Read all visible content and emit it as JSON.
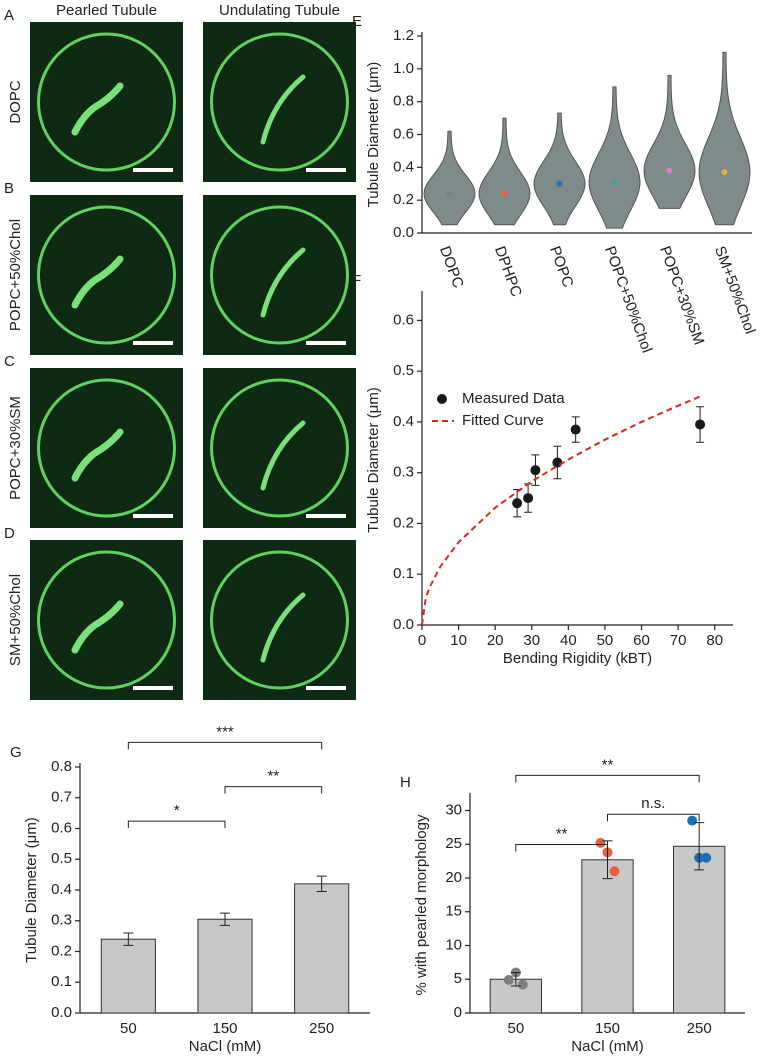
{
  "images": {
    "columns": [
      "Pearled Tubule",
      "Undulating Tubule"
    ],
    "rows": [
      {
        "panel": "A",
        "label": "DOPC"
      },
      {
        "panel": "B",
        "label": "POPC+50%Chol"
      },
      {
        "panel": "C",
        "label": "POPC+30%SM"
      },
      {
        "panel": "D",
        "label": "SM+50%Chol"
      }
    ]
  },
  "chart_data": [
    {
      "type": "violin",
      "panel": "E",
      "ylabel": "Tubule Diameter (μm)",
      "categories": [
        "DOPC",
        "DPHPC",
        "POPC",
        "POPC+50%Chol",
        "POPC+30%SM",
        "SM+50%Chol"
      ],
      "mins": [
        0.05,
        0.05,
        0.05,
        0.03,
        0.15,
        0.05
      ],
      "medians": [
        0.24,
        0.24,
        0.3,
        0.31,
        0.38,
        0.37
      ],
      "maxs": [
        0.62,
        0.7,
        0.73,
        0.89,
        0.96,
        1.1
      ],
      "violin_color": "#7f8a8a",
      "colors": [
        "#7f7f7f",
        "#e5603b",
        "#1f77b4",
        "#3aa597",
        "#d67fc4",
        "#e0b13c"
      ],
      "ylim": [
        0,
        1.2
      ],
      "yticks": [
        {
          "value": 0,
          "label": "0.0"
        },
        0.2,
        0.4,
        0.6,
        0.8,
        {
          "value": 1,
          "label": "1.0"
        },
        1.2
      ]
    },
    {
      "type": "scatter",
      "panel": "F",
      "ylabel": "Tubule Diameter (μm)",
      "xlabel": "Bending Rigidity (kBT)",
      "series": [
        {
          "name": "Measured Data",
          "color": "#1a1a1a",
          "x": [
            26,
            29,
            31,
            37,
            42,
            76
          ],
          "values": [
            0.24,
            0.25,
            0.305,
            0.32,
            0.385,
            0.395
          ],
          "errors": [
            0.027,
            0.028,
            0.03,
            0.032,
            0.025,
            0.035
          ]
        },
        {
          "name": "Fitted Curve",
          "color": "#d62a1e",
          "dash": true,
          "x": [
            0,
            1,
            2,
            5,
            10,
            20,
            30,
            40,
            50,
            60,
            70,
            76
          ],
          "values": [
            0,
            0.052,
            0.073,
            0.115,
            0.163,
            0.231,
            0.283,
            0.326,
            0.365,
            0.4,
            0.432,
            0.45
          ]
        }
      ],
      "xlim": [
        0,
        85
      ],
      "xticks": [
        0,
        10,
        20,
        30,
        40,
        50,
        60,
        70,
        80
      ],
      "ylim": [
        0,
        0.65
      ],
      "yticks": [
        {
          "value": 0,
          "label": "0.0"
        },
        0.1,
        0.2,
        0.3,
        0.4,
        0.5,
        0.6
      ]
    },
    {
      "type": "bar",
      "panel": "G",
      "ylabel": "Tubule Diameter (μm)",
      "xlabel": "NaCl (mM)",
      "categories": [
        "50",
        "150",
        "250"
      ],
      "values": [
        0.24,
        0.305,
        0.42
      ],
      "errors": [
        0.02,
        0.02,
        0.025
      ],
      "bar_color": "#c8c8c8",
      "colors": [
        "#7f7f7f",
        "#e5603b",
        "#1f6fb4"
      ],
      "annotations": [
        {
          "text": "*",
          "between": [
            "50",
            "150"
          ]
        },
        {
          "text": "**",
          "between": [
            "150",
            "250"
          ]
        },
        {
          "text": "***",
          "between": [
            "50",
            "250"
          ]
        }
      ],
      "ylim": [
        0,
        0.8
      ],
      "yticks": [
        {
          "value": 0,
          "label": "0.0"
        },
        0.1,
        0.2,
        0.3,
        0.4,
        0.5,
        0.6,
        0.7,
        0.8
      ]
    },
    {
      "type": "bar",
      "panel": "H",
      "ylabel": "% with pearled morphology",
      "xlabel": "NaCl (mM)",
      "categories": [
        "50",
        "150",
        "250"
      ],
      "values": [
        5,
        22.7,
        24.7
      ],
      "errors": [
        1,
        2.8,
        3.5
      ],
      "points": [
        [
          4.9,
          6,
          4.2
        ],
        [
          25.2,
          23.8,
          21
        ],
        [
          28.5,
          23,
          23
        ]
      ],
      "bar_color": "#c8c8c8",
      "colors": [
        "#7f7f7f",
        "#e5603b",
        "#1f6fb4"
      ],
      "annotations": [
        {
          "text": "**",
          "between": [
            "50",
            "150"
          ]
        },
        {
          "text": "n.s.",
          "between": [
            "150",
            "250"
          ]
        },
        {
          "text": "**",
          "between": [
            "50",
            "250"
          ]
        }
      ],
      "ylim": [
        0,
        32
      ],
      "yticks": [
        0,
        5,
        10,
        15,
        20,
        25,
        30
      ]
    }
  ]
}
